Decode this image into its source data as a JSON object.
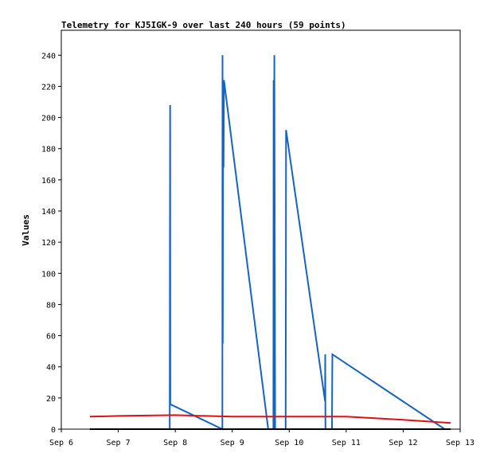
{
  "chart_data": {
    "type": "line",
    "title": "Telemetry for KJ5IGK-9 over last 240 hours (59 points)",
    "xlabel": "",
    "ylabel": "Values",
    "x_ticks": [
      "Sep 6",
      "Sep 7",
      "Sep 8",
      "Sep 9",
      "Sep 10",
      "Sep 11",
      "Sep 12",
      "Sep 13"
    ],
    "xlim": [
      "Sep 6",
      "Sep 13"
    ],
    "y_ticks": [
      0,
      20,
      40,
      60,
      80,
      100,
      120,
      140,
      160,
      180,
      200,
      220,
      240
    ],
    "ylim": [
      0,
      256
    ],
    "grid": false,
    "legend": "none",
    "series": [
      {
        "color": "#1464c8",
        "points": [
          [
            "Sep 7 21:40",
            0
          ],
          [
            "Sep 7 21:45",
            105
          ],
          [
            "Sep 7 21:50",
            208
          ],
          [
            "Sep 7 21:55",
            16
          ],
          [
            "Sep 8 19:50",
            0
          ],
          [
            "Sep 8 19:55",
            240
          ],
          [
            "Sep 8 20:00",
            55
          ],
          [
            "Sep 8 20:10",
            215
          ],
          [
            "Sep 8 20:20",
            168
          ],
          [
            "Sep 8 20:30",
            224
          ],
          [
            "Sep 9 15:10",
            0
          ],
          [
            "Sep 9 17:20",
            0
          ],
          [
            "Sep 9 17:25",
            224
          ],
          [
            "Sep 9 17:35",
            0
          ],
          [
            "Sep 9 17:45",
            240
          ],
          [
            "Sep 9 17:55",
            120
          ],
          [
            "Sep 9 18:05",
            0
          ],
          [
            "Sep 9 22:30",
            0
          ],
          [
            "Sep 9 22:35",
            97
          ],
          [
            "Sep 9 22:40",
            192
          ],
          [
            "Sep 10 15:05",
            18
          ],
          [
            "Sep 10 15:10",
            48
          ],
          [
            "Sep 10 15:15",
            0
          ],
          [
            "Sep 10 18:00",
            0
          ],
          [
            "Sep 10 18:05",
            25
          ],
          [
            "Sep 10 18:10",
            48
          ],
          [
            "Sep 12 17:30",
            0
          ]
        ]
      },
      {
        "color": "#e01010",
        "points": [
          [
            "Sep 6 12:00",
            8
          ],
          [
            "Sep 7 00:00",
            8.5
          ],
          [
            "Sep 8 00:00",
            9
          ],
          [
            "Sep 9 00:00",
            8
          ],
          [
            "Sep 10 00:00",
            8
          ],
          [
            "Sep 11 00:00",
            8
          ],
          [
            "Sep 12 00:00",
            6
          ],
          [
            "Sep 12 20:00",
            4
          ]
        ]
      },
      {
        "color": "#000000",
        "points": [
          [
            "Sep 6 12:00",
            0
          ],
          [
            "Sep 12 20:00",
            0
          ]
        ]
      }
    ]
  }
}
